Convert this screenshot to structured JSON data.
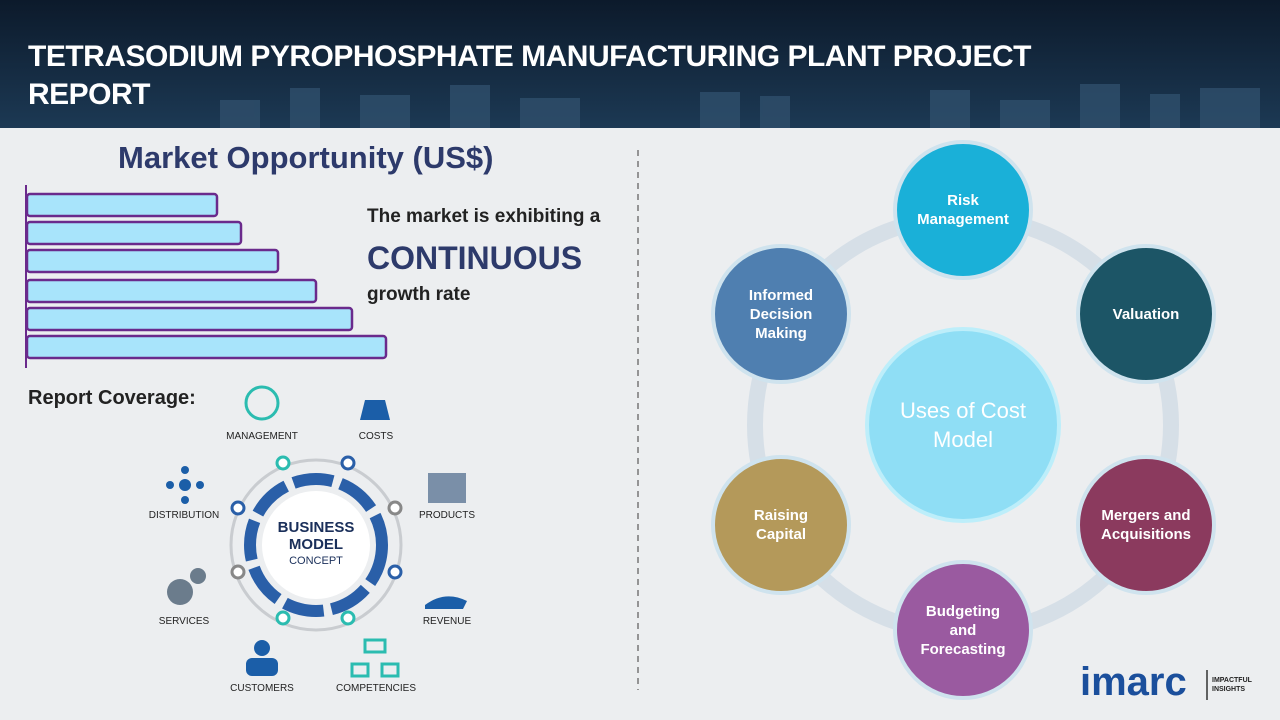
{
  "header": {
    "title": "TETRASODIUM PYROPHOSPHATE MANUFACTURING PLANT PROJECT REPORT"
  },
  "market": {
    "title": "Market Opportunity (US$)",
    "line1": "The market is exhibiting a",
    "emphasis": "CONTINUOUS",
    "line2": "growth rate"
  },
  "coverage": {
    "title": "Report Coverage:",
    "center": [
      "BUSINESS",
      "MODEL",
      "CONCEPT"
    ],
    "items": [
      "MANAGEMENT",
      "COSTS",
      "DISTRIBUTION",
      "PRODUCTS",
      "SERVICES",
      "REVENUE",
      "CUSTOMERS",
      "COMPETENCIES"
    ]
  },
  "uses": {
    "center": "Uses of Cost Model",
    "nodes": [
      "Risk Management",
      "Valuation",
      "Mergers and Acquisitions",
      "Budgeting and Forecasting",
      "Raising Capital",
      "Informed Decision Making"
    ]
  },
  "logo": {
    "brand": "imarc",
    "tagline": "IMPACTFUL INSIGHTS"
  }
}
